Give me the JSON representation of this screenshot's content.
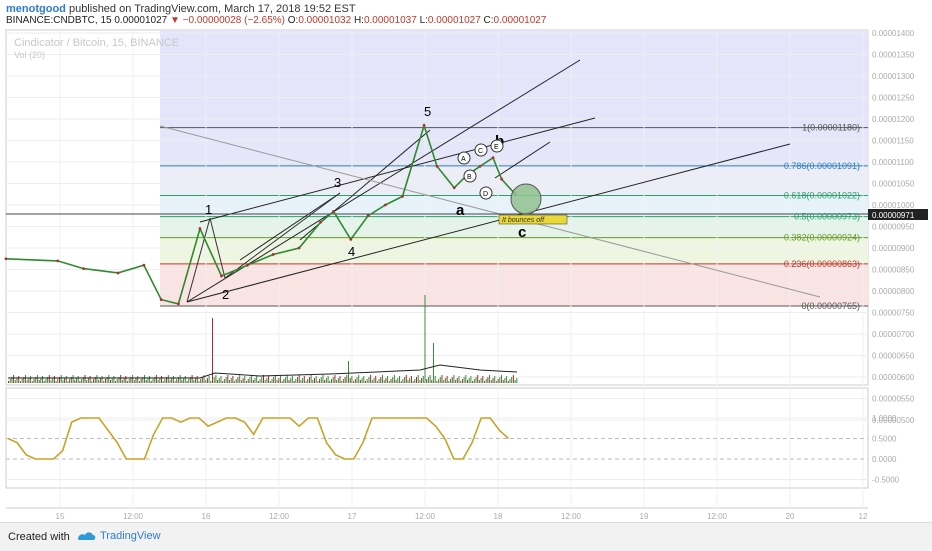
{
  "header": {
    "author": "menotgood",
    "published_text": "published on TradingView.com, March 17, 2018 19:52 EST",
    "symbol": "BINANCE:CNDBTC, 15",
    "last": "0.00001027",
    "change": "−0.00000028 (−2.65%)",
    "open_label": "O:",
    "open": "0.00001032",
    "high_label": "H:",
    "high": "0.00001037",
    "low_label": "L:",
    "low": "0.00001027",
    "close_label": "C:",
    "close": "0.00001027"
  },
  "watermark": {
    "line1": "Cindicator / Bitcoin, 15, BINANCE",
    "line2": "Vol (20)"
  },
  "price_axis": {
    "ticks": [
      "0.00001400",
      "0.00001350",
      "0.00001300",
      "0.00001250",
      "0.00001200",
      "0.00001150",
      "0.00001100",
      "0.00001050",
      "0.00001000",
      "0.00000950",
      "0.00000900",
      "0.00000850",
      "0.00000800",
      "0.00000750",
      "0.00000700",
      "0.00000650",
      "0.00000600",
      "0.00000550",
      "0.00000500"
    ],
    "current_price_label": "0.00000971"
  },
  "osc_axis": {
    "ticks": [
      "1.0000",
      "0.5000",
      "0.0000",
      "-0.5000"
    ]
  },
  "time_axis": {
    "ticks": [
      "15",
      "12:00",
      "16",
      "12:00",
      "17",
      "12:00",
      "18",
      "12:00",
      "19",
      "12:00",
      "20",
      "12"
    ]
  },
  "fib_levels": [
    {
      "label": "1(0.00001180)",
      "price": 1.18e-05,
      "color": "#555555"
    },
    {
      "label": "0.786(0.00001091)",
      "price": 1.091e-05,
      "color": "#2a7fc0"
    },
    {
      "label": "0.618(0.00001022)",
      "price": 1.022e-05,
      "color": "#2aa06a"
    },
    {
      "label": "0.5(0.00000973)",
      "price": 9.73e-06,
      "color": "#2aa06a"
    },
    {
      "label": "0.382(0.00000924)",
      "price": 9.24e-06,
      "color": "#6a9a2a"
    },
    {
      "label": "0.236(0.00000863)",
      "price": 8.63e-06,
      "color": "#c0392b"
    },
    {
      "label": "0(0.00000765)",
      "price": 7.65e-06,
      "color": "#555555"
    }
  ],
  "wave_labels": {
    "w1": "1",
    "w2": "2",
    "w3": "3",
    "w4": "4",
    "w5": "5",
    "wa": "a",
    "wb": "b",
    "wc": "c",
    "subA": "A",
    "subB": "B",
    "subC": "C",
    "subD": "D",
    "subE": "E"
  },
  "annotation": "It bounces off",
  "footer": {
    "created": "Created with",
    "brand": "TradingView"
  },
  "chart_data": {
    "type": "line",
    "title": "Cindicator / Bitcoin, 15, BINANCE",
    "xlabel": "",
    "ylabel": "",
    "x_range": [
      "Mar 14",
      "Mar 20"
    ],
    "ylim": [
      5e-06,
      1.4e-05
    ],
    "series": [
      {
        "name": "CNDBTC",
        "points": [
          [
            0.0,
            8.75e-06
          ],
          [
            0.06,
            8.7e-06
          ],
          [
            0.09,
            8.52e-06
          ],
          [
            0.13,
            8.42e-06
          ],
          [
            0.16,
            8.6e-06
          ],
          [
            0.18,
            7.8e-06
          ],
          [
            0.2,
            7.7e-06
          ],
          [
            0.225,
            9.45e-06
          ],
          [
            0.25,
            8.35e-06
          ],
          [
            0.28,
            8.6e-06
          ],
          [
            0.31,
            8.85e-06
          ],
          [
            0.34,
            9e-06
          ],
          [
            0.365,
            9.6e-06
          ],
          [
            0.38,
            9.85e-06
          ],
          [
            0.4,
            9.2e-06
          ],
          [
            0.42,
            9.75e-06
          ],
          [
            0.44,
            1e-05
          ],
          [
            0.46,
            1.02e-05
          ],
          [
            0.485,
            1.185e-05
          ],
          [
            0.5,
            1.09e-05
          ],
          [
            0.52,
            1.04e-05
          ],
          [
            0.535,
            1.07e-05
          ],
          [
            0.55,
            1.09e-05
          ],
          [
            0.565,
            1.11e-05
          ],
          [
            0.575,
            1.06e-05
          ],
          [
            0.59,
            1.027e-05
          ]
        ]
      },
      {
        "name": "Vol (20)",
        "kind": "volume"
      },
      {
        "name": "Oscillator",
        "kind": "oscillator",
        "range": [
          -0.5,
          1.0
        ]
      }
    ],
    "fib_retracement": [
      1.0,
      0.786,
      0.618,
      0.5,
      0.382,
      0.236,
      0.0
    ],
    "grid": true
  }
}
